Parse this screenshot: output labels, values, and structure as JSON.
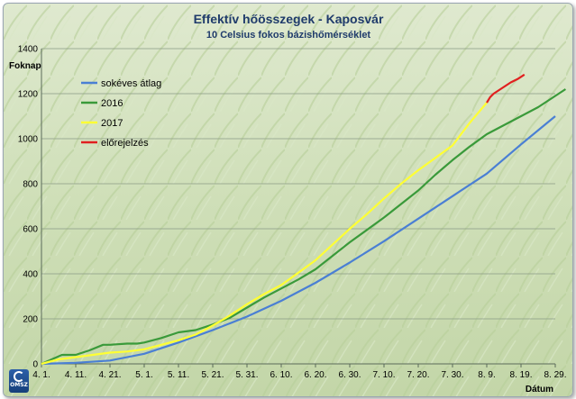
{
  "logo": {
    "text": "OMSZ"
  },
  "chart_data": {
    "type": "line",
    "title": "Effektív hőösszegek - Kaposvár",
    "subtitle": "10 Celsius fokos bázishőmérséklet",
    "ylabel": "Foknap",
    "xlabel": "Dátum",
    "ylim": [
      0,
      1400
    ],
    "yticks": [
      0,
      200,
      400,
      600,
      800,
      1000,
      1200,
      1400
    ],
    "xlim": [
      0,
      150
    ],
    "x_tick_labels": [
      "4. 1.",
      "4. 11.",
      "4. 21.",
      "5. 1.",
      "5. 11.",
      "5. 21.",
      "5. 31.",
      "6. 10.",
      "6. 20.",
      "6. 30.",
      "7. 10.",
      "7. 20.",
      "7. 30.",
      "8. 9.",
      "8. 19.",
      "8. 29."
    ],
    "x_tick_values": [
      0,
      10,
      20,
      30,
      40,
      50,
      60,
      70,
      80,
      90,
      100,
      110,
      120,
      130,
      140,
      150
    ],
    "grid": "horizontal",
    "legend_position": "top-left",
    "series": [
      {
        "name": "sokéves átlag",
        "color": "#4a7fd4",
        "x": [
          0,
          10,
          20,
          30,
          40,
          50,
          60,
          70,
          80,
          90,
          100,
          110,
          120,
          130,
          140,
          150
        ],
        "y": [
          0,
          5,
          15,
          45,
          95,
          150,
          210,
          280,
          360,
          450,
          545,
          645,
          745,
          845,
          975,
          1100
        ]
      },
      {
        "name": "2016",
        "color": "#3a9a3a",
        "x": [
          0,
          3,
          6,
          10,
          12,
          14,
          18,
          20,
          25,
          28,
          30,
          35,
          40,
          45,
          50,
          55,
          60,
          65,
          70,
          75,
          80,
          85,
          90,
          95,
          100,
          105,
          110,
          115,
          120,
          125,
          130,
          135,
          140,
          145,
          150,
          153
        ],
        "y": [
          0,
          20,
          40,
          40,
          50,
          60,
          85,
          85,
          90,
          90,
          95,
          115,
          140,
          150,
          175,
          205,
          250,
          295,
          335,
          375,
          420,
          480,
          540,
          595,
          650,
          710,
          770,
          840,
          905,
          965,
          1020,
          1060,
          1100,
          1140,
          1190,
          1220
        ]
      },
      {
        "name": "2017",
        "color": "#ffff33",
        "x": [
          0,
          5,
          10,
          15,
          20,
          25,
          30,
          35,
          40,
          45,
          50,
          55,
          60,
          65,
          70,
          75,
          80,
          85,
          90,
          95,
          100,
          105,
          110,
          115,
          120,
          125,
          130
        ],
        "y": [
          0,
          20,
          30,
          40,
          50,
          55,
          65,
          85,
          105,
          130,
          170,
          215,
          265,
          310,
          350,
          405,
          460,
          530,
          600,
          665,
          735,
          800,
          860,
          915,
          970,
          1070,
          1160
        ]
      },
      {
        "name": "előrejelzés",
        "color": "#e02020",
        "x": [
          130,
          131,
          132,
          133,
          135,
          137,
          139,
          141
        ],
        "y": [
          1160,
          1185,
          1200,
          1210,
          1230,
          1250,
          1265,
          1285
        ]
      }
    ]
  }
}
